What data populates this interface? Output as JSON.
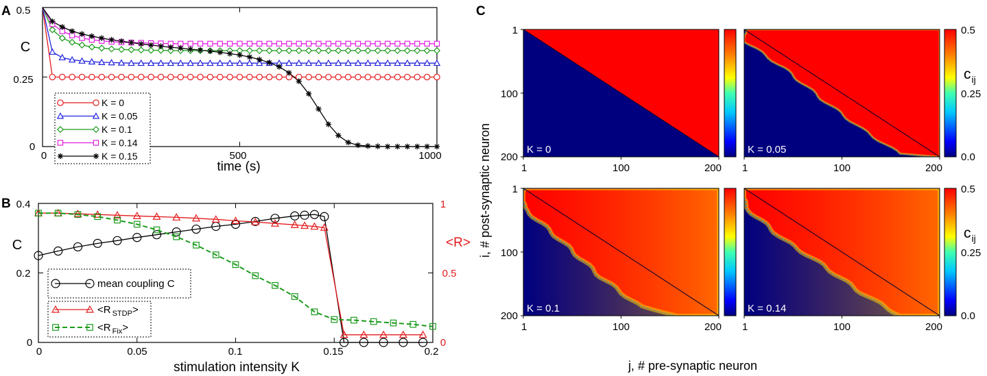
{
  "chart_data": [
    {
      "panel_label": "A",
      "type": "line",
      "xlabel": "time (s)",
      "ylabel": "C",
      "xlim": [
        0,
        1000
      ],
      "ylim": [
        0,
        0.5
      ],
      "xticks": [
        "0",
        "500",
        "1000"
      ],
      "yticks": [
        "0",
        "0.25",
        "0.5"
      ],
      "legend": "bottom-left",
      "series": [
        {
          "name": "K = 0",
          "color": "#e41a1c",
          "marker": "circle",
          "x": [
            0,
            25,
            50,
            75,
            100,
            125,
            150,
            175,
            200,
            225,
            250,
            275,
            300,
            325,
            350,
            375,
            400,
            425,
            450,
            475,
            500,
            525,
            550,
            575,
            600,
            625,
            650,
            675,
            700,
            725,
            750,
            775,
            800,
            825,
            850,
            875,
            900,
            925,
            950,
            975,
            1000
          ],
          "y": [
            0.5,
            0.25,
            0.25,
            0.25,
            0.25,
            0.25,
            0.25,
            0.25,
            0.25,
            0.25,
            0.25,
            0.25,
            0.25,
            0.25,
            0.25,
            0.25,
            0.25,
            0.25,
            0.25,
            0.25,
            0.25,
            0.25,
            0.25,
            0.25,
            0.25,
            0.25,
            0.25,
            0.25,
            0.25,
            0.25,
            0.25,
            0.25,
            0.25,
            0.25,
            0.25,
            0.25,
            0.25,
            0.25,
            0.25,
            0.25,
            0.25
          ]
        },
        {
          "name": "K = 0.05",
          "color": "#2222dd",
          "marker": "triangle",
          "x": [
            0,
            25,
            50,
            75,
            100,
            125,
            150,
            175,
            200,
            225,
            250,
            275,
            300,
            325,
            350,
            375,
            400,
            425,
            450,
            475,
            500,
            525,
            550,
            575,
            600,
            625,
            650,
            675,
            700,
            725,
            750,
            775,
            800,
            825,
            850,
            875,
            900,
            925,
            950,
            975,
            1000
          ],
          "y": [
            0.5,
            0.34,
            0.32,
            0.312,
            0.308,
            0.305,
            0.303,
            0.302,
            0.301,
            0.3,
            0.3,
            0.3,
            0.3,
            0.3,
            0.3,
            0.3,
            0.3,
            0.3,
            0.3,
            0.3,
            0.3,
            0.3,
            0.3,
            0.3,
            0.3,
            0.3,
            0.3,
            0.3,
            0.3,
            0.3,
            0.3,
            0.3,
            0.3,
            0.3,
            0.3,
            0.3,
            0.3,
            0.3,
            0.3,
            0.3,
            0.3
          ]
        },
        {
          "name": "K = 0.1",
          "color": "#1a9a1a",
          "marker": "diamond",
          "x": [
            0,
            25,
            50,
            75,
            100,
            125,
            150,
            175,
            200,
            225,
            250,
            275,
            300,
            325,
            350,
            375,
            400,
            425,
            450,
            475,
            500,
            525,
            550,
            575,
            600,
            625,
            650,
            675,
            700,
            725,
            750,
            775,
            800,
            825,
            850,
            875,
            900,
            925,
            950,
            975,
            1000
          ],
          "y": [
            0.5,
            0.42,
            0.39,
            0.375,
            0.365,
            0.358,
            0.354,
            0.351,
            0.349,
            0.348,
            0.347,
            0.346,
            0.346,
            0.345,
            0.345,
            0.345,
            0.345,
            0.345,
            0.345,
            0.345,
            0.345,
            0.345,
            0.345,
            0.345,
            0.345,
            0.345,
            0.345,
            0.345,
            0.345,
            0.345,
            0.345,
            0.345,
            0.345,
            0.345,
            0.345,
            0.345,
            0.345,
            0.345,
            0.345,
            0.345,
            0.345
          ]
        },
        {
          "name": "K = 0.14",
          "color": "#e020e0",
          "marker": "square",
          "x": [
            0,
            25,
            50,
            75,
            100,
            125,
            150,
            175,
            200,
            225,
            250,
            275,
            300,
            325,
            350,
            375,
            400,
            425,
            450,
            475,
            500,
            525,
            550,
            575,
            600,
            625,
            650,
            675,
            700,
            725,
            750,
            775,
            800,
            825,
            850,
            875,
            900,
            925,
            950,
            975,
            1000
          ],
          "y": [
            0.5,
            0.44,
            0.415,
            0.4,
            0.39,
            0.384,
            0.38,
            0.377,
            0.375,
            0.374,
            0.373,
            0.372,
            0.371,
            0.37,
            0.37,
            0.37,
            0.37,
            0.37,
            0.37,
            0.37,
            0.37,
            0.37,
            0.37,
            0.37,
            0.37,
            0.37,
            0.37,
            0.37,
            0.37,
            0.37,
            0.37,
            0.37,
            0.37,
            0.37,
            0.37,
            0.37,
            0.37,
            0.37,
            0.37,
            0.37,
            0.37
          ]
        },
        {
          "name": "K = 0.15",
          "color": "#000000",
          "marker": "star",
          "x": [
            0,
            25,
            50,
            75,
            100,
            125,
            150,
            175,
            200,
            225,
            250,
            275,
            300,
            325,
            350,
            375,
            400,
            425,
            450,
            475,
            500,
            525,
            550,
            575,
            600,
            625,
            650,
            675,
            700,
            725,
            750,
            775,
            800,
            825,
            850,
            875,
            900,
            925,
            950,
            975,
            1000
          ],
          "y": [
            0.5,
            0.45,
            0.43,
            0.415,
            0.405,
            0.397,
            0.39,
            0.384,
            0.379,
            0.374,
            0.369,
            0.365,
            0.361,
            0.357,
            0.354,
            0.35,
            0.347,
            0.343,
            0.339,
            0.334,
            0.329,
            0.322,
            0.313,
            0.302,
            0.287,
            0.265,
            0.235,
            0.19,
            0.135,
            0.08,
            0.04,
            0.015,
            0.005,
            0.002,
            0.001,
            0.0,
            0.0,
            0.0,
            0.0,
            0.0,
            0.0
          ]
        }
      ]
    },
    {
      "panel_label": "B",
      "type": "line",
      "xlabel": "stimulation intensity K",
      "ylabel": "C",
      "ylabel_right": "<R>",
      "xlim": [
        0,
        0.2
      ],
      "ylim": [
        0,
        0.4
      ],
      "ylim_right": [
        0,
        1
      ],
      "xticks": [
        "0",
        "0.05",
        "0.1",
        "0.15",
        "0.2"
      ],
      "yticks": [
        "0",
        "0.2",
        "0.4"
      ],
      "yticks_right": [
        "0",
        "0.5",
        "1"
      ],
      "legend": "left",
      "series": [
        {
          "name": "mean coupling C",
          "axis": "left",
          "color": "#000000",
          "marker": "circle",
          "dash": "solid",
          "x": [
            0,
            0.01,
            0.02,
            0.03,
            0.04,
            0.05,
            0.06,
            0.07,
            0.08,
            0.09,
            0.1,
            0.11,
            0.12,
            0.13,
            0.135,
            0.14,
            0.145,
            0.155,
            0.165,
            0.175,
            0.185,
            0.195
          ],
          "y": [
            0.25,
            0.263,
            0.275,
            0.285,
            0.293,
            0.302,
            0.31,
            0.318,
            0.326,
            0.334,
            0.34,
            0.348,
            0.357,
            0.364,
            0.366,
            0.368,
            0.362,
            0.0,
            0.0,
            0.0,
            0.0,
            0.0
          ]
        },
        {
          "name": "<R STDP>",
          "label_main": "<R",
          "label_sub": "STDP",
          "label_end": ">",
          "axis": "right",
          "color": "#e41a1c",
          "marker": "triangle",
          "dash": "solid",
          "x": [
            0,
            0.01,
            0.02,
            0.03,
            0.04,
            0.05,
            0.06,
            0.07,
            0.08,
            0.09,
            0.1,
            0.11,
            0.12,
            0.13,
            0.135,
            0.14,
            0.145,
            0.155,
            0.165,
            0.175,
            0.185,
            0.195
          ],
          "y": [
            0.93,
            0.93,
            0.925,
            0.92,
            0.915,
            0.91,
            0.905,
            0.9,
            0.893,
            0.885,
            0.875,
            0.866,
            0.856,
            0.846,
            0.84,
            0.834,
            0.826,
            0.055,
            0.055,
            0.055,
            0.055,
            0.055
          ]
        },
        {
          "name": "<R Fix>",
          "label_main": "<R",
          "label_sub": "Fix",
          "label_end": ">",
          "axis": "right",
          "color": "#1a9a1a",
          "marker": "square",
          "dash": "dashed",
          "x": [
            0,
            0.01,
            0.02,
            0.03,
            0.04,
            0.05,
            0.06,
            0.07,
            0.08,
            0.09,
            0.1,
            0.11,
            0.12,
            0.13,
            0.14,
            0.15,
            0.16,
            0.17,
            0.18,
            0.19,
            0.2
          ],
          "y": [
            0.93,
            0.93,
            0.92,
            0.905,
            0.88,
            0.85,
            0.81,
            0.76,
            0.7,
            0.63,
            0.56,
            0.48,
            0.41,
            0.33,
            0.22,
            0.165,
            0.16,
            0.15,
            0.14,
            0.13,
            0.115
          ]
        }
      ]
    },
    {
      "panel_label": "C",
      "type": "heatmap",
      "xlabel": "j,  # pre-synaptic neuron",
      "ylabel": "i, # post-synaptic neuron",
      "colorbar_label_main": "c",
      "colorbar_label_sub": "ij",
      "colorbar_range": [
        0.0,
        0.5
      ],
      "colorbar_ticks": [
        "0.5",
        "0.25",
        "0.0"
      ],
      "xticks": [
        "1",
        "100",
        "200"
      ],
      "yticks": [
        "1",
        "100",
        "200"
      ],
      "panels": [
        {
          "label": "K = 0",
          "boundary_fraction": [
            0.0,
            0.0,
            0.0,
            0.0,
            0.0,
            0.0
          ]
        },
        {
          "label": "K = 0.05",
          "boundary_fraction": [
            0.09,
            0.3,
            0.55,
            0.78,
            0.98,
            1.0
          ]
        },
        {
          "label": "K = 0.1",
          "boundary_fraction": [
            0.15,
            0.42,
            0.7,
            0.93,
            1.0,
            1.0
          ]
        },
        {
          "label": "K = 0.14",
          "boundary_fraction": [
            0.14,
            0.4,
            0.6,
            0.82,
            1.0,
            1.0
          ]
        }
      ]
    }
  ]
}
